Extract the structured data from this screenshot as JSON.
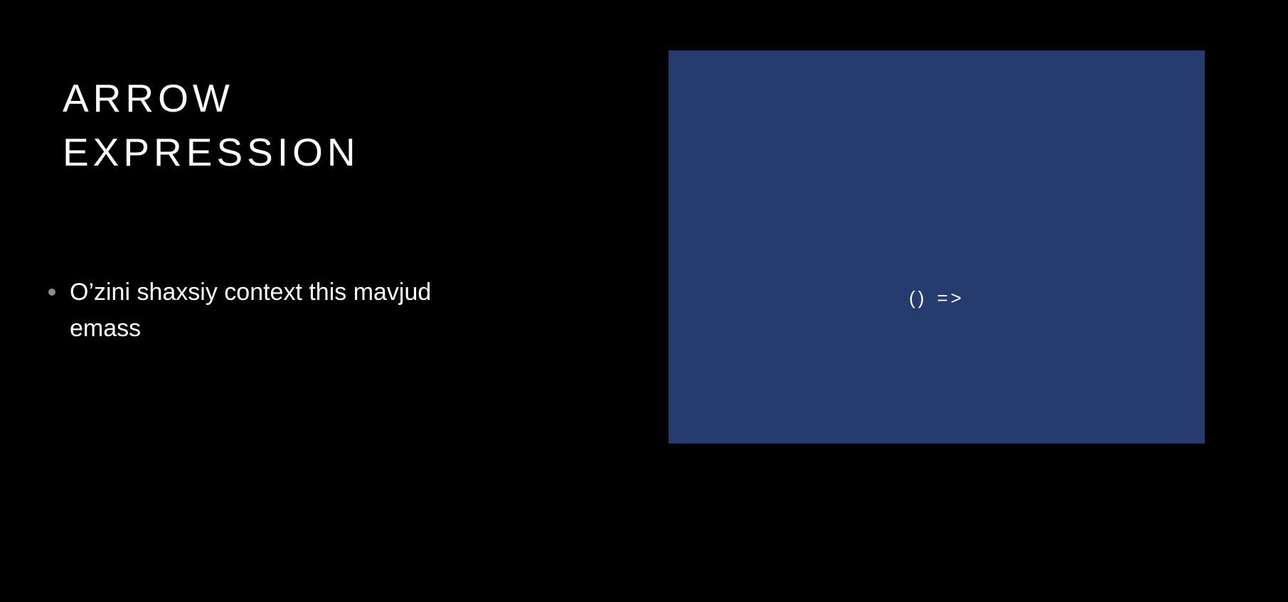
{
  "slide": {
    "title_line1": "ARROW",
    "title_line2": "EXPRESSION",
    "bullets": [
      {
        "text": "O’zini shaxsiy context this mavjud emass"
      }
    ],
    "code_panel": {
      "code_left": "()",
      "code_right": "=>",
      "background_color": "#263c6e"
    },
    "colors": {
      "background": "#000000",
      "text": "#ffffff",
      "bullet": "#8a8a8a"
    }
  }
}
